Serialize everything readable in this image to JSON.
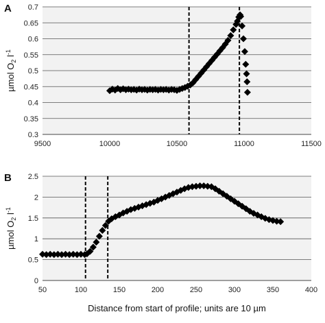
{
  "chart_data": [
    {
      "panel": "A",
      "type": "scatter",
      "ylabel": "µmol O",
      "ylabel_sub": "2",
      "ylabel_unit": " l",
      "ylabel_sup": "-1",
      "xlim": [
        9500,
        11500
      ],
      "ylim": [
        0.3,
        0.7
      ],
      "xticks": [
        "9500",
        "10000",
        "10500",
        "11000",
        "11500"
      ],
      "yticks": [
        "0.3",
        "0.35",
        "0.4",
        "0.45",
        "0.5",
        "0.55",
        "0.6",
        "0.65",
        "0.7"
      ],
      "grid": true,
      "vlines": [
        10590,
        10965
      ],
      "points": [
        [
          10000,
          0.437
        ],
        [
          10020,
          0.442
        ],
        [
          10040,
          0.439
        ],
        [
          10060,
          0.444
        ],
        [
          10080,
          0.44
        ],
        [
          10100,
          0.443
        ],
        [
          10120,
          0.44
        ],
        [
          10140,
          0.442
        ],
        [
          10160,
          0.44
        ],
        [
          10180,
          0.441
        ],
        [
          10200,
          0.439
        ],
        [
          10220,
          0.442
        ],
        [
          10240,
          0.44
        ],
        [
          10260,
          0.441
        ],
        [
          10280,
          0.439
        ],
        [
          10300,
          0.441
        ],
        [
          10320,
          0.44
        ],
        [
          10340,
          0.441
        ],
        [
          10360,
          0.439
        ],
        [
          10380,
          0.441
        ],
        [
          10400,
          0.44
        ],
        [
          10420,
          0.441
        ],
        [
          10440,
          0.439
        ],
        [
          10460,
          0.441
        ],
        [
          10480,
          0.44
        ],
        [
          10500,
          0.438
        ],
        [
          10520,
          0.441
        ],
        [
          10540,
          0.444
        ],
        [
          10560,
          0.447
        ],
        [
          10580,
          0.451
        ],
        [
          10600,
          0.455
        ],
        [
          10620,
          0.462
        ],
        [
          10640,
          0.472
        ],
        [
          10660,
          0.482
        ],
        [
          10680,
          0.492
        ],
        [
          10700,
          0.502
        ],
        [
          10720,
          0.512
        ],
        [
          10740,
          0.522
        ],
        [
          10760,
          0.532
        ],
        [
          10780,
          0.542
        ],
        [
          10800,
          0.552
        ],
        [
          10820,
          0.562
        ],
        [
          10840,
          0.572
        ],
        [
          10860,
          0.583
        ],
        [
          10880,
          0.595
        ],
        [
          10900,
          0.61
        ],
        [
          10920,
          0.628
        ],
        [
          10940,
          0.645
        ],
        [
          10950,
          0.655
        ],
        [
          10960,
          0.668
        ],
        [
          10970,
          0.675
        ],
        [
          10975,
          0.67
        ],
        [
          10985,
          0.64
        ],
        [
          10995,
          0.6
        ],
        [
          11005,
          0.56
        ],
        [
          11012,
          0.52
        ],
        [
          11018,
          0.49
        ],
        [
          11022,
          0.465
        ],
        [
          11025,
          0.432
        ]
      ]
    },
    {
      "panel": "B",
      "type": "scatter",
      "ylabel": "µmol O",
      "ylabel_sub": "2",
      "ylabel_unit": " l",
      "ylabel_sup": "-1",
      "xlabel": "Distance from start of profile; units are 10 µm",
      "xlim": [
        50,
        400
      ],
      "ylim": [
        0,
        2.5
      ],
      "xticks": [
        "50",
        "100",
        "150",
        "200",
        "250",
        "300",
        "350",
        "400"
      ],
      "yticks": [
        "0",
        "0.5",
        "1",
        "1.5",
        "2",
        "2.5"
      ],
      "grid": true,
      "vlines": [
        106,
        135
      ],
      "points": [
        [
          50,
          0.63
        ],
        [
          55,
          0.62
        ],
        [
          60,
          0.63
        ],
        [
          65,
          0.62
        ],
        [
          70,
          0.63
        ],
        [
          75,
          0.62
        ],
        [
          80,
          0.63
        ],
        [
          85,
          0.62
        ],
        [
          90,
          0.63
        ],
        [
          95,
          0.62
        ],
        [
          100,
          0.63
        ],
        [
          105,
          0.62
        ],
        [
          108,
          0.64
        ],
        [
          112,
          0.7
        ],
        [
          116,
          0.8
        ],
        [
          120,
          0.92
        ],
        [
          124,
          1.06
        ],
        [
          128,
          1.2
        ],
        [
          132,
          1.32
        ],
        [
          136,
          1.42
        ],
        [
          140,
          1.48
        ],
        [
          145,
          1.53
        ],
        [
          150,
          1.57
        ],
        [
          155,
          1.62
        ],
        [
          160,
          1.66
        ],
        [
          165,
          1.7
        ],
        [
          170,
          1.73
        ],
        [
          175,
          1.76
        ],
        [
          180,
          1.79
        ],
        [
          185,
          1.82
        ],
        [
          190,
          1.85
        ],
        [
          195,
          1.88
        ],
        [
          200,
          1.92
        ],
        [
          205,
          1.96
        ],
        [
          210,
          2.0
        ],
        [
          215,
          2.04
        ],
        [
          220,
          2.08
        ],
        [
          225,
          2.12
        ],
        [
          230,
          2.16
        ],
        [
          235,
          2.2
        ],
        [
          240,
          2.23
        ],
        [
          245,
          2.25
        ],
        [
          250,
          2.26
        ],
        [
          255,
          2.27
        ],
        [
          260,
          2.27
        ],
        [
          265,
          2.26
        ],
        [
          270,
          2.25
        ],
        [
          275,
          2.2
        ],
        [
          280,
          2.14
        ],
        [
          285,
          2.08
        ],
        [
          290,
          2.02
        ],
        [
          295,
          1.96
        ],
        [
          300,
          1.9
        ],
        [
          305,
          1.84
        ],
        [
          310,
          1.78
        ],
        [
          315,
          1.72
        ],
        [
          320,
          1.66
        ],
        [
          325,
          1.61
        ],
        [
          330,
          1.57
        ],
        [
          335,
          1.53
        ],
        [
          340,
          1.49
        ],
        [
          345,
          1.46
        ],
        [
          350,
          1.44
        ],
        [
          355,
          1.42
        ],
        [
          360,
          1.41
        ]
      ]
    }
  ]
}
